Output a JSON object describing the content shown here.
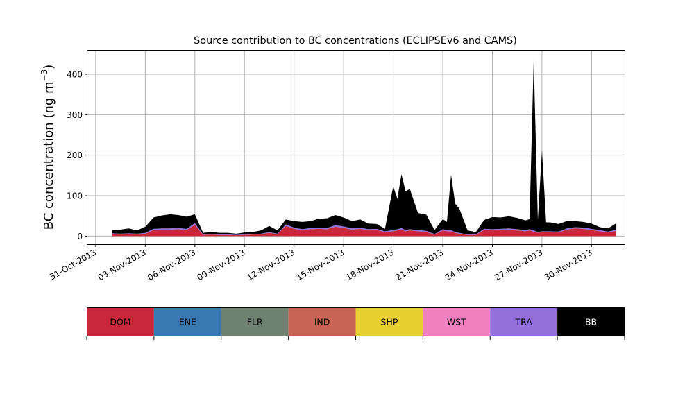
{
  "chart_data": {
    "type": "area",
    "stacked": true,
    "title": "Source contribution to BC concentrations (ECLIPSEv6 and CAMS)",
    "ylabel": "BC concentration (ng m",
    "ylabel_sup": "−3",
    "ylabel_close": ")",
    "xlabel": "",
    "xlim": [
      "2013-10-30T12:00",
      "2013-12-02T00:00"
    ],
    "ylim": [
      -20,
      460
    ],
    "grid": true,
    "x_ticks": [
      {
        "date": "2013-10-31",
        "label": "31-Oct-2013"
      },
      {
        "date": "2013-11-03",
        "label": "03-Nov-2013"
      },
      {
        "date": "2013-11-06",
        "label": "06-Nov-2013"
      },
      {
        "date": "2013-11-09",
        "label": "09-Nov-2013"
      },
      {
        "date": "2013-11-12",
        "label": "12-Nov-2013"
      },
      {
        "date": "2013-11-15",
        "label": "15-Nov-2013"
      },
      {
        "date": "2013-11-18",
        "label": "18-Nov-2013"
      },
      {
        "date": "2013-11-21",
        "label": "21-Nov-2013"
      },
      {
        "date": "2013-11-24",
        "label": "24-Nov-2013"
      },
      {
        "date": "2013-11-27",
        "label": "27-Nov-2013"
      },
      {
        "date": "2013-11-30",
        "label": "30-Nov-2013"
      }
    ],
    "y_ticks": [
      0,
      100,
      200,
      300,
      400
    ],
    "x": [
      "2013-11-01T00:00",
      "2013-11-01T12:00",
      "2013-11-02T00:00",
      "2013-11-02T12:00",
      "2013-11-03T00:00",
      "2013-11-03T12:00",
      "2013-11-04T00:00",
      "2013-11-04T12:00",
      "2013-11-05T00:00",
      "2013-11-05T12:00",
      "2013-11-06T00:00",
      "2013-11-06T12:00",
      "2013-11-07T00:00",
      "2013-11-07T12:00",
      "2013-11-08T00:00",
      "2013-11-08T12:00",
      "2013-11-09T00:00",
      "2013-11-09T12:00",
      "2013-11-10T00:00",
      "2013-11-10T12:00",
      "2013-11-11T00:00",
      "2013-11-11T12:00",
      "2013-11-12T00:00",
      "2013-11-12T12:00",
      "2013-11-13T00:00",
      "2013-11-13T12:00",
      "2013-11-14T00:00",
      "2013-11-14T12:00",
      "2013-11-15T00:00",
      "2013-11-15T12:00",
      "2013-11-16T00:00",
      "2013-11-16T12:00",
      "2013-11-17T00:00",
      "2013-11-17T12:00",
      "2013-11-18T00:00",
      "2013-11-18T06:00",
      "2013-11-18T12:00",
      "2013-11-18T18:00",
      "2013-11-19T00:00",
      "2013-11-19T12:00",
      "2013-11-20T00:00",
      "2013-11-20T12:00",
      "2013-11-21T00:00",
      "2013-11-21T06:00",
      "2013-11-21T12:00",
      "2013-11-21T18:00",
      "2013-11-22T00:00",
      "2013-11-22T12:00",
      "2013-11-23T00:00",
      "2013-11-23T12:00",
      "2013-11-24T00:00",
      "2013-11-24T12:00",
      "2013-11-25T00:00",
      "2013-11-25T12:00",
      "2013-11-26T00:00",
      "2013-11-26T06:00",
      "2013-11-26T12:00",
      "2013-11-26T18:00",
      "2013-11-27T00:00",
      "2013-11-27T06:00",
      "2013-11-27T12:00",
      "2013-11-28T00:00",
      "2013-11-28T12:00",
      "2013-11-29T00:00",
      "2013-11-29T12:00",
      "2013-11-30T00:00",
      "2013-11-30T12:00",
      "2013-12-01T00:00",
      "2013-12-01T12:00"
    ],
    "series": [
      {
        "name": "DOM",
        "color": "#c8283a",
        "values": [
          5,
          4,
          5,
          4,
          6,
          15,
          16,
          16,
          17,
          15,
          28,
          3,
          4,
          3,
          3,
          2,
          3,
          4,
          5,
          8,
          5,
          25,
          18,
          14,
          17,
          18,
          17,
          23,
          20,
          16,
          18,
          14,
          15,
          10,
          12,
          14,
          16,
          12,
          14,
          12,
          10,
          4,
          14,
          12,
          12,
          8,
          6,
          3,
          3,
          15,
          14,
          15,
          16,
          14,
          12,
          14,
          11,
          8,
          10,
          10,
          10,
          9,
          16,
          19,
          18,
          15,
          12,
          9,
          13
        ]
      },
      {
        "name": "ENE",
        "color": "#3a78b0",
        "values": [
          0,
          0,
          0,
          0,
          0,
          0,
          0,
          0,
          0,
          0,
          0,
          0,
          0,
          0,
          0,
          0,
          0,
          0,
          0,
          0,
          0,
          0,
          0,
          0,
          0,
          0,
          0,
          0,
          0,
          0,
          0,
          0,
          0,
          0,
          0,
          0,
          0,
          0,
          0,
          0,
          0,
          0,
          0,
          0,
          0,
          0,
          0,
          0,
          0,
          0,
          0,
          0,
          0,
          0,
          0,
          0,
          0,
          0,
          0,
          0,
          0,
          0,
          0,
          0,
          0,
          0,
          0,
          0,
          0
        ]
      },
      {
        "name": "FLR",
        "color": "#6f8272",
        "values": [
          0,
          0,
          0,
          0,
          0,
          0,
          0,
          0,
          0,
          0,
          0,
          0,
          0,
          0,
          0,
          0,
          0,
          0,
          0,
          0,
          0,
          0,
          0,
          0,
          0,
          0,
          0,
          0,
          0,
          0,
          0,
          0,
          0,
          0,
          0,
          0,
          0,
          0,
          0,
          0,
          0,
          0,
          0,
          0,
          0,
          0,
          0,
          0,
          0,
          0,
          0,
          0,
          0,
          0,
          0,
          0,
          0,
          0,
          0,
          0,
          0,
          0,
          0,
          0,
          0,
          0,
          0,
          0,
          0
        ]
      },
      {
        "name": "IND",
        "color": "#c86455",
        "values": [
          0,
          0,
          0,
          0,
          0,
          0,
          0,
          0,
          0,
          0,
          0,
          0,
          0,
          0,
          0,
          0,
          0,
          0,
          0,
          0,
          0,
          0,
          0,
          0,
          0,
          0,
          0,
          0,
          0,
          0,
          0,
          0,
          0,
          0,
          0,
          0,
          0,
          0,
          0,
          0,
          0,
          0,
          0,
          0,
          0,
          0,
          0,
          0,
          0,
          0,
          0,
          0,
          0,
          0,
          0,
          0,
          0,
          0,
          0,
          0,
          0,
          0,
          0,
          0,
          0,
          0,
          0,
          0,
          0
        ]
      },
      {
        "name": "SHP",
        "color": "#e8d030",
        "values": [
          0,
          0,
          0,
          0,
          0,
          0,
          0,
          0,
          0,
          0,
          0,
          0,
          0,
          0,
          0,
          0,
          0,
          0,
          0,
          0,
          0,
          0,
          0,
          0,
          0,
          0,
          0,
          0,
          0,
          0,
          0,
          0,
          0,
          0,
          0,
          0,
          0,
          0,
          0,
          0,
          0,
          0,
          0,
          0,
          0,
          0,
          0,
          0,
          0,
          0,
          0,
          0,
          0,
          0,
          0,
          0,
          0,
          0,
          0,
          0,
          0,
          0,
          0,
          0,
          0,
          0,
          0,
          0,
          0
        ]
      },
      {
        "name": "WST",
        "color": "#f080c0",
        "values": [
          0,
          0,
          0,
          0,
          0,
          0,
          0,
          0,
          0,
          0,
          0,
          0,
          0,
          0,
          0,
          0,
          0,
          0,
          0,
          0,
          0,
          0,
          0,
          0,
          0,
          0,
          0,
          0,
          0,
          0,
          0,
          0,
          0,
          0,
          0,
          0,
          0,
          0,
          0,
          0,
          0,
          0,
          0,
          0,
          0,
          0,
          0,
          0,
          0,
          0,
          0,
          0,
          0,
          0,
          0,
          0,
          0,
          0,
          0,
          0,
          0,
          0,
          0,
          0,
          0,
          0,
          0,
          0,
          0
        ]
      },
      {
        "name": "TRA",
        "color": "#9370db",
        "values": [
          2,
          2,
          2,
          2,
          2,
          3,
          3,
          3,
          3,
          3,
          4,
          1,
          1,
          1,
          1,
          1,
          1,
          1,
          1,
          2,
          1,
          4,
          3,
          3,
          3,
          3,
          3,
          4,
          4,
          3,
          3,
          3,
          3,
          2,
          3,
          3,
          4,
          3,
          3,
          3,
          3,
          1,
          3,
          3,
          3,
          2,
          2,
          1,
          1,
          3,
          3,
          3,
          3,
          3,
          3,
          3,
          3,
          2,
          2,
          2,
          2,
          2,
          3,
          3,
          3,
          3,
          3,
          2,
          3
        ]
      },
      {
        "name": "BB",
        "color": "#000000",
        "values": [
          8,
          10,
          12,
          8,
          15,
          28,
          32,
          35,
          32,
          30,
          22,
          4,
          5,
          4,
          4,
          3,
          5,
          5,
          8,
          15,
          8,
          12,
          16,
          18,
          17,
          22,
          24,
          25,
          22,
          18,
          20,
          14,
          12,
          6,
          108,
          75,
          133,
          95,
          100,
          42,
          40,
          10,
          25,
          20,
          137,
          70,
          60,
          10,
          6,
          22,
          30,
          28,
          30,
          28,
          24,
          25,
          422,
          30,
          200,
          22,
          22,
          19,
          18,
          15,
          14,
          13,
          7,
          8,
          16
        ]
      }
    ],
    "legend": {
      "placement": "bottom",
      "entries": [
        {
          "label": "DOM",
          "color": "#c8283a",
          "text_color": "#000000"
        },
        {
          "label": "ENE",
          "color": "#3a78b0",
          "text_color": "#000000"
        },
        {
          "label": "FLR",
          "color": "#6f8272",
          "text_color": "#000000"
        },
        {
          "label": "IND",
          "color": "#c86455",
          "text_color": "#000000"
        },
        {
          "label": "SHP",
          "color": "#e8d030",
          "text_color": "#000000"
        },
        {
          "label": "WST",
          "color": "#f080c0",
          "text_color": "#000000"
        },
        {
          "label": "TRA",
          "color": "#9370db",
          "text_color": "#000000"
        },
        {
          "label": "BB",
          "color": "#000000",
          "text_color": "#ffffff"
        }
      ]
    }
  }
}
